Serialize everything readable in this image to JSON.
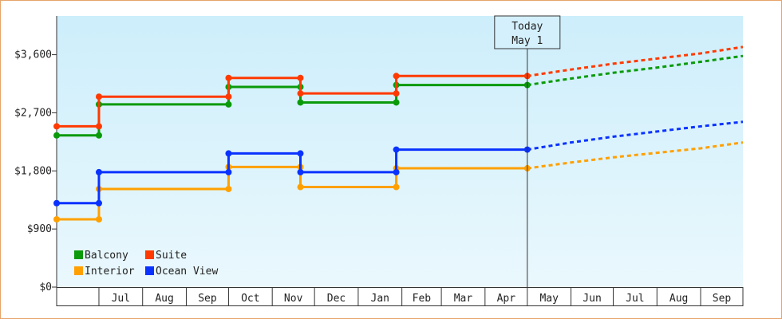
{
  "chart_data": {
    "type": "line",
    "step": true,
    "title": "",
    "xlabel": "",
    "ylabel": "",
    "ylim": [
      0,
      4200
    ],
    "yticks": [
      {
        "value": 0,
        "label": "$0"
      },
      {
        "value": 900,
        "label": "$900"
      },
      {
        "value": 1800,
        "label": "$1,800"
      },
      {
        "value": 2700,
        "label": "$2,700"
      },
      {
        "value": 3600,
        "label": "$3,600"
      }
    ],
    "x_range": [
      "2024-06-01",
      "2025-10-01"
    ],
    "month_ticks": [
      {
        "label": "Jul",
        "start": "2024-07-01",
        "end": "2024-08-01"
      },
      {
        "label": "Aug",
        "start": "2024-08-01",
        "end": "2024-09-01"
      },
      {
        "label": "Sep",
        "start": "2024-09-01",
        "end": "2024-10-01"
      },
      {
        "label": "Oct",
        "start": "2024-10-01",
        "end": "2024-11-01"
      },
      {
        "label": "Nov",
        "start": "2024-11-01",
        "end": "2024-12-01"
      },
      {
        "label": "Dec",
        "start": "2024-12-01",
        "end": "2025-01-01"
      },
      {
        "label": "Jan",
        "start": "2025-01-01",
        "end": "2025-02-01"
      },
      {
        "label": "Feb",
        "start": "2025-02-01",
        "end": "2025-03-01"
      },
      {
        "label": "Mar",
        "start": "2025-03-01",
        "end": "2025-04-01"
      },
      {
        "label": "Apr",
        "start": "2025-04-01",
        "end": "2025-05-01"
      },
      {
        "label": "May",
        "start": "2025-05-01",
        "end": "2025-06-01"
      },
      {
        "label": "Jun",
        "start": "2025-06-01",
        "end": "2025-07-01"
      },
      {
        "label": "Jul",
        "start": "2025-07-01",
        "end": "2025-08-01"
      },
      {
        "label": "Aug",
        "start": "2025-08-01",
        "end": "2025-09-01"
      },
      {
        "label": "Sep",
        "start": "2025-09-01",
        "end": "2025-10-01"
      }
    ],
    "today": {
      "date": "2025-05-01",
      "label_line1": "Today",
      "label_line2": "May 1"
    },
    "legend_placement": "bottom-left",
    "grid": false,
    "background_gradient": [
      "#cdeefb",
      "#eaf8fd"
    ],
    "series": [
      {
        "name": "Balcony",
        "color": "#0a9a0a",
        "points": [
          {
            "x": "2024-06-01",
            "y": 2350
          },
          {
            "x": "2024-07-01",
            "y": 2350
          },
          {
            "x": "2024-07-01",
            "y": 2830
          },
          {
            "x": "2024-10-01",
            "y": 2830
          },
          {
            "x": "2024-10-01",
            "y": 3100
          },
          {
            "x": "2024-11-21",
            "y": 3100
          },
          {
            "x": "2024-11-21",
            "y": 2860
          },
          {
            "x": "2025-01-28",
            "y": 2860
          },
          {
            "x": "2025-01-28",
            "y": 3130
          },
          {
            "x": "2025-05-01",
            "y": 3130
          }
        ],
        "forecast": [
          {
            "x": "2025-05-01",
            "y": 3130
          },
          {
            "x": "2025-06-01",
            "y": 3230
          },
          {
            "x": "2025-07-01",
            "y": 3320
          },
          {
            "x": "2025-08-01",
            "y": 3400
          },
          {
            "x": "2025-09-01",
            "y": 3490
          },
          {
            "x": "2025-10-01",
            "y": 3580
          }
        ]
      },
      {
        "name": "Suite",
        "color": "#ff3a00",
        "points": [
          {
            "x": "2024-06-01",
            "y": 2490
          },
          {
            "x": "2024-07-01",
            "y": 2490
          },
          {
            "x": "2024-07-01",
            "y": 2950
          },
          {
            "x": "2024-10-01",
            "y": 2950
          },
          {
            "x": "2024-10-01",
            "y": 3240
          },
          {
            "x": "2024-11-21",
            "y": 3240
          },
          {
            "x": "2024-11-21",
            "y": 3000
          },
          {
            "x": "2025-01-28",
            "y": 3000
          },
          {
            "x": "2025-01-28",
            "y": 3270
          },
          {
            "x": "2025-05-01",
            "y": 3270
          }
        ],
        "forecast": [
          {
            "x": "2025-05-01",
            "y": 3270
          },
          {
            "x": "2025-06-01",
            "y": 3370
          },
          {
            "x": "2025-07-01",
            "y": 3460
          },
          {
            "x": "2025-08-01",
            "y": 3540
          },
          {
            "x": "2025-09-01",
            "y": 3620
          },
          {
            "x": "2025-10-01",
            "y": 3720
          }
        ]
      },
      {
        "name": "Interior",
        "color": "#ffa000",
        "points": [
          {
            "x": "2024-06-01",
            "y": 1050
          },
          {
            "x": "2024-07-01",
            "y": 1050
          },
          {
            "x": "2024-07-01",
            "y": 1520
          },
          {
            "x": "2024-10-01",
            "y": 1520
          },
          {
            "x": "2024-10-01",
            "y": 1860
          },
          {
            "x": "2024-11-21",
            "y": 1860
          },
          {
            "x": "2024-11-21",
            "y": 1550
          },
          {
            "x": "2025-01-28",
            "y": 1550
          },
          {
            "x": "2025-01-28",
            "y": 1840
          },
          {
            "x": "2025-05-01",
            "y": 1840
          }
        ],
        "forecast": [
          {
            "x": "2025-05-01",
            "y": 1840
          },
          {
            "x": "2025-06-01",
            "y": 1930
          },
          {
            "x": "2025-07-01",
            "y": 2010
          },
          {
            "x": "2025-08-01",
            "y": 2080
          },
          {
            "x": "2025-09-01",
            "y": 2150
          },
          {
            "x": "2025-10-01",
            "y": 2240
          }
        ]
      },
      {
        "name": "Ocean View",
        "color": "#0a32ff",
        "points": [
          {
            "x": "2024-06-01",
            "y": 1300
          },
          {
            "x": "2024-07-01",
            "y": 1300
          },
          {
            "x": "2024-07-01",
            "y": 1780
          },
          {
            "x": "2024-10-01",
            "y": 1780
          },
          {
            "x": "2024-10-01",
            "y": 2070
          },
          {
            "x": "2024-11-21",
            "y": 2070
          },
          {
            "x": "2024-11-21",
            "y": 1780
          },
          {
            "x": "2025-01-28",
            "y": 1780
          },
          {
            "x": "2025-01-28",
            "y": 2130
          },
          {
            "x": "2025-05-01",
            "y": 2130
          }
        ],
        "forecast": [
          {
            "x": "2025-05-01",
            "y": 2130
          },
          {
            "x": "2025-06-01",
            "y": 2240
          },
          {
            "x": "2025-07-01",
            "y": 2330
          },
          {
            "x": "2025-08-01",
            "y": 2410
          },
          {
            "x": "2025-09-01",
            "y": 2490
          },
          {
            "x": "2025-10-01",
            "y": 2560
          }
        ]
      }
    ]
  }
}
